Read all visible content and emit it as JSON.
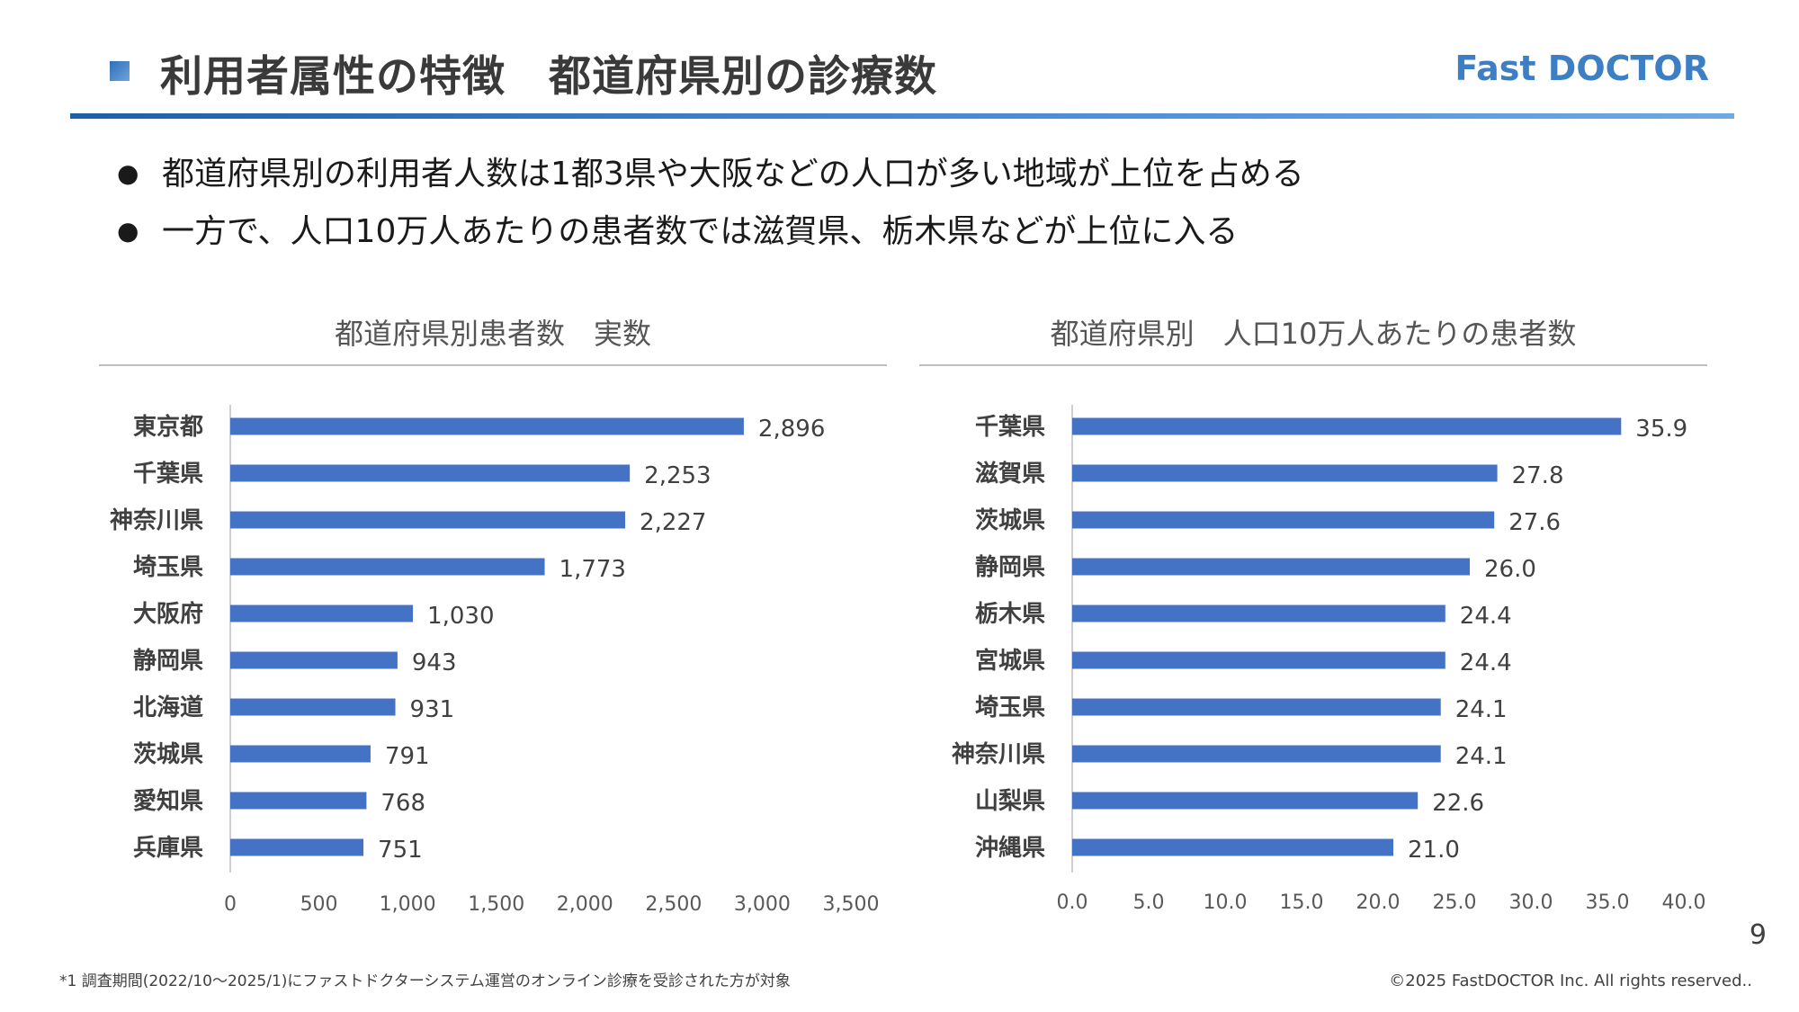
{
  "header": {
    "title": "利用者属性の特徴　都道府県別の診療数",
    "brand": "Fast DOCTOR"
  },
  "bullets": [
    "都道府県別の利用者人数は1都3県や大阪などの人口が多い地域が上位を占める",
    "一方で、人口10万人あたりの患者数では滋賀県、栃木県などが上位に入る"
  ],
  "colors": {
    "bar": "#4472c4",
    "accent": "#3d7fc4"
  },
  "chart_data": [
    {
      "type": "bar",
      "orientation": "horizontal",
      "title": "都道府県別患者数　実数",
      "categories": [
        "東京都",
        "千葉県",
        "神奈川県",
        "埼玉県",
        "大阪府",
        "静岡県",
        "北海道",
        "茨城県",
        "愛知県",
        "兵庫県"
      ],
      "values": [
        2896,
        2253,
        2227,
        1773,
        1030,
        943,
        931,
        791,
        768,
        751
      ],
      "value_labels": [
        "2,896",
        "2,253",
        "2,227",
        "1,773",
        "1,030",
        "943",
        "931",
        "791",
        "768",
        "751"
      ],
      "xlim": [
        0,
        3500
      ],
      "ticks": [
        0,
        500,
        1000,
        1500,
        2000,
        2500,
        3000,
        3500
      ],
      "tick_labels": [
        "0",
        "500",
        "1,000",
        "1,500",
        "2,000",
        "2,500",
        "3,000",
        "3,500"
      ],
      "grid": false,
      "legend": "none"
    },
    {
      "type": "bar",
      "orientation": "horizontal",
      "title": "都道府県別　人口10万人あたりの患者数",
      "categories": [
        "千葉県",
        "滋賀県",
        "茨城県",
        "静岡県",
        "栃木県",
        "宮城県",
        "埼玉県",
        "神奈川県",
        "山梨県",
        "沖縄県"
      ],
      "values": [
        35.9,
        27.8,
        27.6,
        26.0,
        24.4,
        24.4,
        24.1,
        24.1,
        22.6,
        21.0
      ],
      "value_labels": [
        "35.9",
        "27.8",
        "27.6",
        "26.0",
        "24.4",
        "24.4",
        "24.1",
        "24.1",
        "22.6",
        "21.0"
      ],
      "xlim": [
        0,
        40
      ],
      "ticks": [
        0,
        5,
        10,
        15,
        20,
        25,
        30,
        35,
        40
      ],
      "tick_labels": [
        "0.0",
        "5.0",
        "10.0",
        "15.0",
        "20.0",
        "25.0",
        "30.0",
        "35.0",
        "40.0"
      ],
      "grid": false,
      "legend": "none"
    }
  ],
  "footer": {
    "page_number": "9",
    "footnote": "*1 調査期間(2022/10～2025/1)にファストドクターシステム運営のオンライン診療を受診された方が対象",
    "copyright": "©2025 FastDOCTOR Inc. All rights reserved.."
  }
}
